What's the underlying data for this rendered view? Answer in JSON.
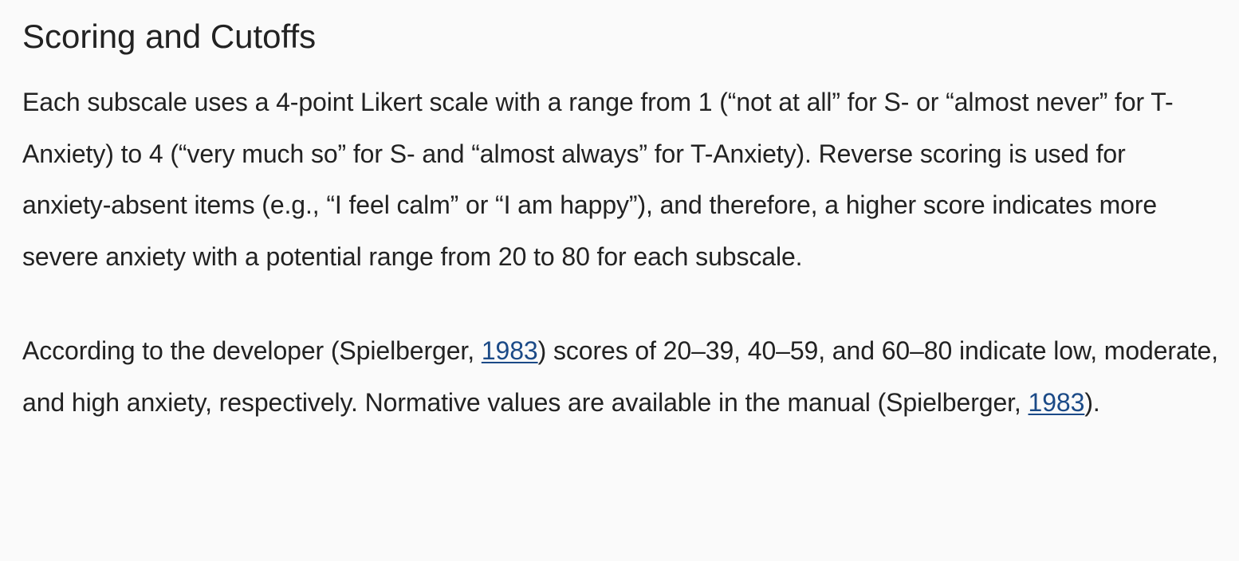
{
  "section": {
    "heading": "Scoring and Cutoffs"
  },
  "paragraph1": {
    "text": "Each subscale uses a 4-point Likert scale with a range from 1 (“not at all” for S- or “almost never” for T-Anxiety) to 4 (“very much so” for S- and “almost always” for T-Anxiety). Reverse scoring is used for anxiety-absent items (e.g., “I feel calm” or “I am happy”), and therefore, a higher score indicates more severe anxiety with a potential range from 20 to 80 for each subscale."
  },
  "paragraph2": {
    "part1": "According to the developer (Spielberger, ",
    "link1": "1983",
    "part2": ") scores of 20–39, 40–59, and 60–80 indicate low, moderate, and high anxiety, respectively. Normative values are available in the manual (Spielberger, ",
    "link2": "1983",
    "part3": ")."
  },
  "colors": {
    "background": "#fafafa",
    "text": "#222222",
    "link": "#1b4a87"
  }
}
